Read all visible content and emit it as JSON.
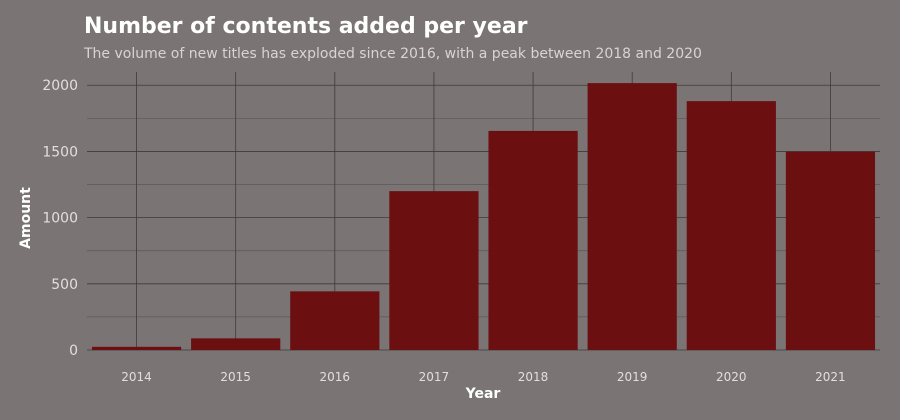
{
  "colors": {
    "background": "#7a7574",
    "bar": "#6b0f10",
    "grid_major": "#3f3b3a",
    "grid_minor": "#5c5857"
  },
  "chart_data": {
    "type": "bar",
    "title": "Number of contents added per year",
    "subtitle": "The volume of new titles has exploded since 2016, with a peak between 2018 and 2020",
    "xlabel": "Year",
    "ylabel": "Amount",
    "categories": [
      "2014",
      "2015",
      "2016",
      "2017",
      "2018",
      "2019",
      "2020",
      "2021"
    ],
    "values": [
      24,
      88,
      443,
      1200,
      1655,
      2016,
      1880,
      1498
    ],
    "ylim": [
      0,
      2100
    ],
    "yticks": [
      0,
      500,
      1000,
      1500,
      2000
    ],
    "grid": true,
    "legend": "none"
  }
}
